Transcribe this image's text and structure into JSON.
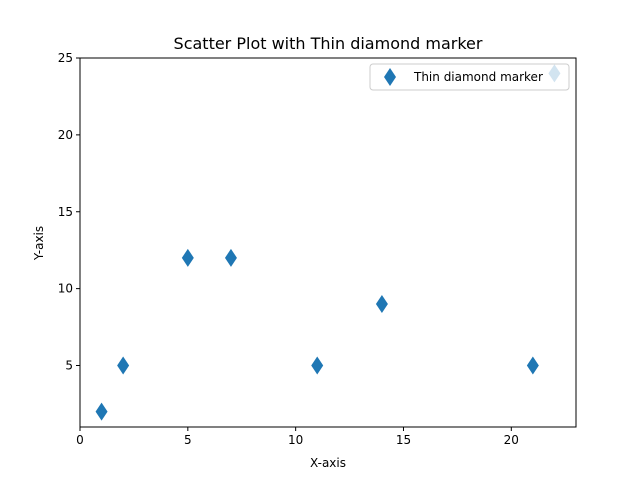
{
  "chart_data": {
    "type": "scatter",
    "title": "Scatter Plot with Thin diamond marker",
    "xlabel": "X-axis",
    "ylabel": "Y-axis",
    "xlim": [
      0,
      23
    ],
    "ylim": [
      1,
      25
    ],
    "xticks": [
      0,
      5,
      10,
      15,
      20
    ],
    "yticks": [
      5,
      10,
      15,
      20,
      25
    ],
    "grid": false,
    "legend": {
      "position": "upper right"
    },
    "series": [
      {
        "name": "Thin diamond marker",
        "marker": "thin_diamond",
        "color": "#1f77b4",
        "points": [
          {
            "x": 1,
            "y": 2
          },
          {
            "x": 2,
            "y": 5
          },
          {
            "x": 5,
            "y": 12
          },
          {
            "x": 7,
            "y": 12
          },
          {
            "x": 11,
            "y": 5
          },
          {
            "x": 14,
            "y": 9
          },
          {
            "x": 21,
            "y": 5
          },
          {
            "x": 22,
            "y": 24
          }
        ]
      }
    ]
  }
}
